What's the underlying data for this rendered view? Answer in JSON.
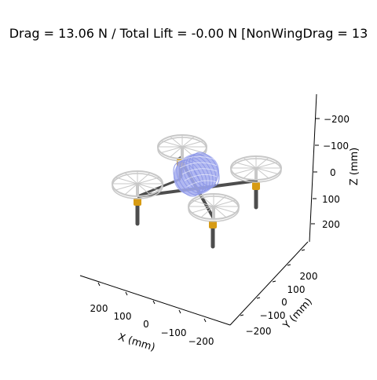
{
  "title": "Drag = 13.06 N / Total Lift = -0.00 N [NonWingDrag = 13",
  "axes": {
    "x": {
      "label": "X (mm)",
      "ticks": [
        "200",
        "100",
        "0",
        "−100",
        "−200"
      ]
    },
    "y": {
      "label": "Y (mm)",
      "ticks": [
        "−200",
        "−100",
        "0",
        "100",
        "200"
      ]
    },
    "z": {
      "label": "Z (mm)",
      "ticks": [
        "−200",
        "−100",
        "0",
        "100",
        "200"
      ]
    }
  },
  "colors": {
    "rotor": "#c8c8c8",
    "arm": "#4d4d4d",
    "motor": "#d79b13",
    "fuselage": "#a3acef"
  }
}
